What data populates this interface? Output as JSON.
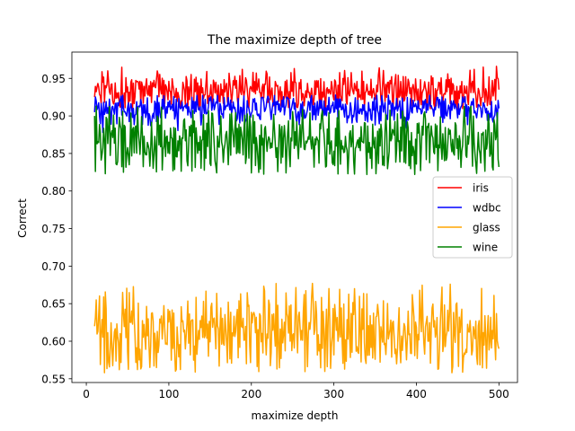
{
  "chart_data": {
    "type": "line",
    "title": "The maximize depth of tree",
    "xlabel": "maximize depth",
    "ylabel": "Correct",
    "xlim": [
      -17.5,
      522.5
    ],
    "ylim": [
      0.545,
      0.985
    ],
    "xticks": [
      0,
      100,
      200,
      300,
      400,
      500
    ],
    "xtick_labels": [
      "0",
      "100",
      "200",
      "300",
      "400",
      "500"
    ],
    "yticks": [
      0.55,
      0.6,
      0.65,
      0.7,
      0.75,
      0.8,
      0.85,
      0.9,
      0.95
    ],
    "ytick_labels": [
      "0.55",
      "0.60",
      "0.65",
      "0.70",
      "0.75",
      "0.80",
      "0.85",
      "0.90",
      "0.95"
    ],
    "grid": false,
    "legend_position": "center-right",
    "x": {
      "start": 10,
      "end": 500,
      "step": 1
    },
    "series": [
      {
        "name": "iris",
        "color": "#ff0000",
        "mean": 0.933,
        "low": 0.909,
        "high": 0.966,
        "keypoints": [
          [
            10,
            0.925
          ],
          [
            26,
            0.96
          ],
          [
            100,
            0.946
          ],
          [
            202,
            0.958
          ],
          [
            252,
            0.963
          ],
          [
            355,
            0.964
          ],
          [
            470,
            0.962
          ],
          [
            497,
            0.966
          ],
          [
            500,
            0.935
          ]
        ]
      },
      {
        "name": "wdbc",
        "color": "#0000ff",
        "mean": 0.909,
        "low": 0.878,
        "high": 0.928,
        "keypoints": [
          [
            10,
            0.905
          ],
          [
            12,
            0.92
          ],
          [
            20,
            0.878
          ],
          [
            100,
            0.912
          ],
          [
            250,
            0.918
          ],
          [
            400,
            0.912
          ],
          [
            500,
            0.91
          ]
        ]
      },
      {
        "name": "glass",
        "color": "#ffa500",
        "mean": 0.611,
        "low": 0.558,
        "high": 0.677,
        "keypoints": [
          [
            10,
            0.62
          ],
          [
            12,
            0.655
          ],
          [
            22,
            0.558
          ],
          [
            274,
            0.677
          ],
          [
            325,
            0.67
          ],
          [
            340,
            0.663
          ],
          [
            390,
            0.64
          ],
          [
            443,
            0.558
          ],
          [
            494,
            0.661
          ],
          [
            500,
            0.59
          ]
        ]
      },
      {
        "name": "wine",
        "color": "#008000",
        "mean": 0.867,
        "low": 0.822,
        "high": 0.913,
        "keypoints": [
          [
            10,
            0.9
          ],
          [
            11,
            0.826
          ],
          [
            12,
            0.913
          ],
          [
            200,
            0.824
          ],
          [
            340,
            0.822
          ],
          [
            493,
            0.828
          ],
          [
            500,
            0.832
          ]
        ]
      }
    ]
  }
}
